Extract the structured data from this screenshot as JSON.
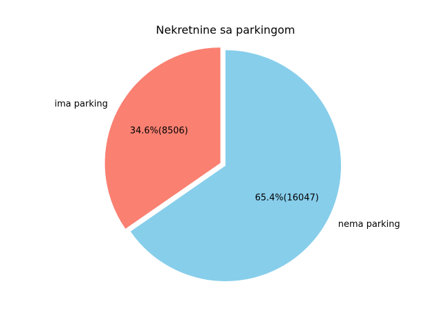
{
  "chart_data": {
    "type": "pie",
    "title": "Nekretnine sa parkingom",
    "slices": [
      {
        "label": "nema parking",
        "value": 16047,
        "percent_label": "65.4%(16047)",
        "color": "#87CEEB",
        "exploded": false
      },
      {
        "label": "ima parking",
        "value": 8506,
        "percent_label": "34.6%(8506)",
        "color": "#FA8072",
        "exploded": true
      }
    ],
    "start_angle_deg": 90,
    "direction": "clockwise",
    "legend": "none"
  }
}
